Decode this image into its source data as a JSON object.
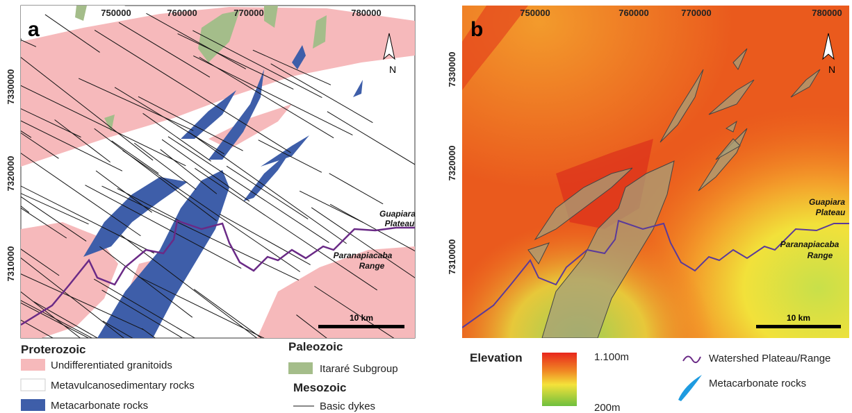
{
  "panels": [
    {
      "label": "a",
      "x_ticks": [
        "750000",
        "760000",
        "770000",
        "780000"
      ],
      "y_ticks": [
        "7330000",
        "7320000",
        "7310000"
      ],
      "places": {
        "upper": [
          "Guapiara",
          "Plateau"
        ],
        "lower": [
          "Paranapiacaba",
          "Range"
        ]
      },
      "scale_bar": "10 km",
      "north": "N"
    },
    {
      "label": "b",
      "x_ticks": [
        "750000",
        "760000",
        "770000",
        "780000"
      ],
      "y_ticks": [
        "7330000",
        "7320000",
        "7310000"
      ],
      "places": {
        "upper": [
          "Guapiara",
          "Plateau"
        ],
        "lower": [
          "Paranapiacaba",
          "Range"
        ]
      },
      "scale_bar": "10 km",
      "north": "N"
    }
  ],
  "legend_a": {
    "proterozoic": {
      "title": "Proterozoic",
      "items": [
        "Undifferentiated granitoids",
        "Metavulcanosedimentary rocks",
        "Metacarbonate rocks"
      ]
    },
    "paleozoic": {
      "title": "Paleozoic",
      "items": [
        "Itararé Subgroup"
      ]
    },
    "mesozoic": {
      "title": "Mesozoic",
      "items": [
        "Basic dykes"
      ]
    }
  },
  "legend_b": {
    "title": "Elevation",
    "max": "1.100m",
    "min": "200m",
    "items": [
      "Watershed Plateau/Range",
      "Metacarbonate rocks"
    ]
  }
}
